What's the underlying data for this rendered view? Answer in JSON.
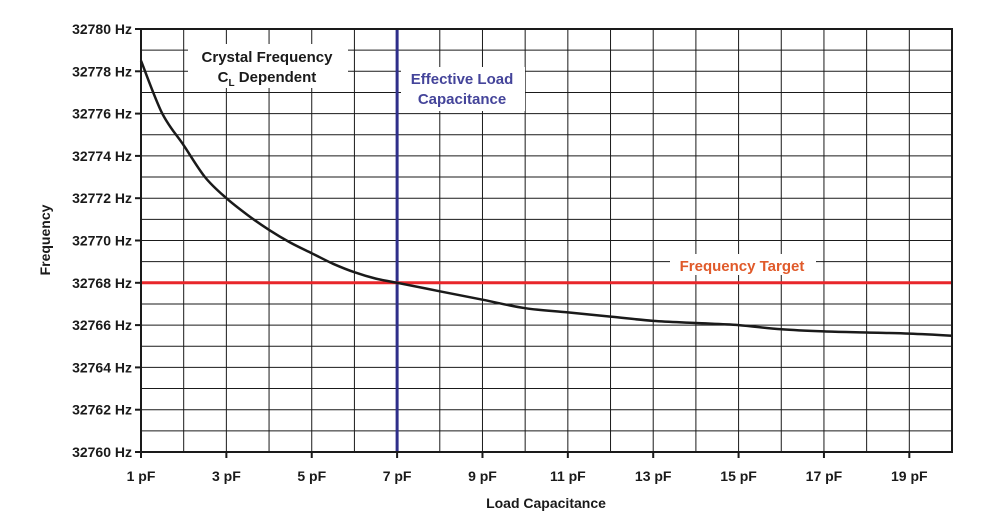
{
  "chart_data": {
    "type": "line",
    "title": "",
    "xlabel": "Load Capacitance",
    "ylabel": "Frequency",
    "xlim": [
      1,
      20
    ],
    "ylim": [
      32760,
      32780
    ],
    "grid": true,
    "x_ticks": [
      {
        "value": 1,
        "label": "1 pF"
      },
      {
        "value": 3,
        "label": "3 pF"
      },
      {
        "value": 5,
        "label": "5 pF"
      },
      {
        "value": 7,
        "label": "7 pF"
      },
      {
        "value": 9,
        "label": "9 pF"
      },
      {
        "value": 11,
        "label": "11 pF"
      },
      {
        "value": 13,
        "label": "13 pF"
      },
      {
        "value": 15,
        "label": "15 pF"
      },
      {
        "value": 17,
        "label": "17 pF"
      },
      {
        "value": 19,
        "label": "19 pF"
      }
    ],
    "y_ticks": [
      {
        "value": 32780,
        "label": "32780 Hz"
      },
      {
        "value": 32778,
        "label": "32778 Hz"
      },
      {
        "value": 32776,
        "label": "32776 Hz"
      },
      {
        "value": 32774,
        "label": "32774 Hz"
      },
      {
        "value": 32772,
        "label": "32772 Hz"
      },
      {
        "value": 32770,
        "label": "32770 Hz"
      },
      {
        "value": 32768,
        "label": "32768 Hz"
      },
      {
        "value": 32766,
        "label": "32766 Hz"
      },
      {
        "value": 32764,
        "label": "32764 Hz"
      },
      {
        "value": 32762,
        "label": "32762 Hz"
      },
      {
        "value": 32760,
        "label": "32760 Hz"
      }
    ],
    "series": [
      {
        "name": "Crystal Frequency CL Dependent",
        "color": "#1a1a1a",
        "x": [
          1,
          1.5,
          2,
          2.5,
          3,
          3.5,
          4,
          4.5,
          5,
          5.5,
          6,
          6.5,
          7,
          8,
          9,
          10,
          11,
          12,
          13,
          14,
          15,
          16,
          17,
          18,
          19,
          20
        ],
        "y": [
          32778.5,
          32776.0,
          32774.5,
          32773.0,
          32772.0,
          32771.2,
          32770.5,
          32769.9,
          32769.4,
          32768.9,
          32768.5,
          32768.2,
          32768.0,
          32767.6,
          32767.2,
          32766.8,
          32766.6,
          32766.4,
          32766.2,
          32766.1,
          32766.0,
          32765.8,
          32765.7,
          32765.65,
          32765.6,
          32765.5
        ]
      }
    ],
    "reference_lines": [
      {
        "orientation": "vertical",
        "value": 7,
        "color": "#2e2e8a",
        "label_lines": [
          "Effective Load",
          "Capacitance"
        ]
      },
      {
        "orientation": "horizontal",
        "value": 32768,
        "color": "#e8262a",
        "label_lines": [
          "Frequency Target"
        ],
        "label_color": "#e05a2a"
      }
    ],
    "annotation": {
      "line1": "Crystal Frequency",
      "line2_prefix": "C",
      "line2_sub": "L",
      "line2_suffix": " Dependent"
    }
  }
}
